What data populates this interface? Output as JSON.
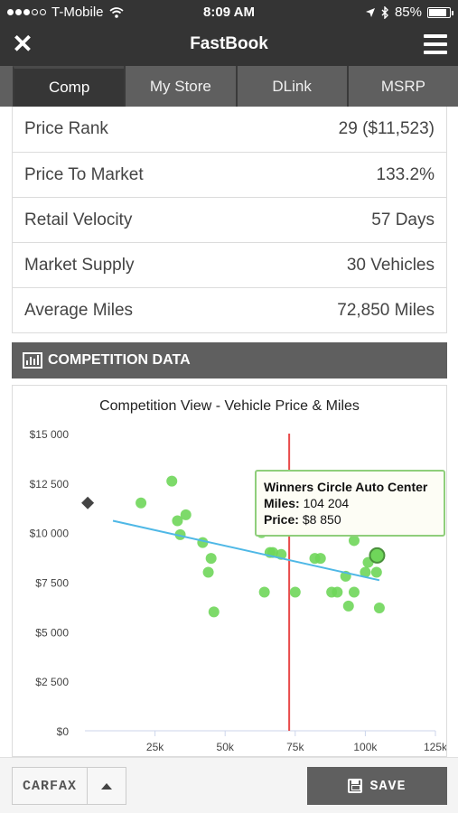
{
  "status_bar": {
    "carrier": "T-Mobile",
    "time": "8:09 AM",
    "battery": "85%",
    "battery_level": 0.85,
    "icons": [
      "signal-dots-icon",
      "wifi-icon",
      "location-arrow-icon",
      "bluetooth-icon",
      "battery-icon"
    ]
  },
  "header": {
    "title": "FastBook",
    "close_icon": "close-icon",
    "menu_icon": "hamburger-menu-icon"
  },
  "tabs": [
    {
      "label": "Comp",
      "active": true
    },
    {
      "label": "My Store",
      "active": false
    },
    {
      "label": "DLink",
      "active": false
    },
    {
      "label": "MSRP",
      "active": false
    }
  ],
  "metrics": [
    {
      "label": "Price Rank",
      "value": "29 ($11,523)"
    },
    {
      "label": "Price To Market",
      "value": "133.2%"
    },
    {
      "label": "Retail Velocity",
      "value": "57 Days"
    },
    {
      "label": "Market Supply",
      "value": "30 Vehicles"
    },
    {
      "label": "Average Miles",
      "value": "72,850 Miles"
    }
  ],
  "section": {
    "title": "COMPETITION DATA",
    "icon": "bar-chart-icon"
  },
  "tooltip": {
    "title": "Winners Circle Auto Center",
    "miles_label": "Miles:",
    "miles_value": "104 204",
    "price_label": "Price:",
    "price_value": "$8 850"
  },
  "footer": {
    "carfax_label": "CARFAX",
    "expand_icon": "caret-up-icon",
    "save_label": "SAVE",
    "save_icon": "floppy-disk-icon"
  },
  "colors": {
    "point": "#6fd65a",
    "trend": "#4fb8e6",
    "average_line": "#e84a4a",
    "my_vehicle": "#444444",
    "header_bg": "#343434",
    "tab_bg": "#5f5f5f"
  },
  "chart_data": {
    "type": "scatter",
    "title": "Competition View - Vehicle Price & Miles",
    "xlabel": "",
    "ylabel": "",
    "xlim": [
      0,
      125000
    ],
    "ylim": [
      0,
      15000
    ],
    "x_ticks": [
      25000,
      50000,
      75000,
      100000,
      125000
    ],
    "x_tick_labels": [
      "25k",
      "50k",
      "75k",
      "100k",
      "125k"
    ],
    "y_ticks": [
      0,
      2500,
      5000,
      7500,
      10000,
      12500,
      15000
    ],
    "y_tick_labels": [
      "$0",
      "$2 500",
      "$5 000",
      "$7 500",
      "$10 000",
      "$12 500",
      "$15 000"
    ],
    "grid": false,
    "average_miles_line": 72850,
    "my_vehicle": {
      "x": 1000,
      "y": 11500
    },
    "trendline": {
      "x": [
        10000,
        105000
      ],
      "y": [
        10600,
        7600
      ]
    },
    "selected_point": {
      "x": 104204,
      "y": 8850
    },
    "points": [
      {
        "x": 20000,
        "y": 11500
      },
      {
        "x": 31000,
        "y": 12600
      },
      {
        "x": 33000,
        "y": 10600
      },
      {
        "x": 34000,
        "y": 9900
      },
      {
        "x": 36000,
        "y": 10900
      },
      {
        "x": 42000,
        "y": 9500
      },
      {
        "x": 45000,
        "y": 8700
      },
      {
        "x": 44000,
        "y": 8000
      },
      {
        "x": 46000,
        "y": 6000
      },
      {
        "x": 63000,
        "y": 10000
      },
      {
        "x": 66000,
        "y": 9000
      },
      {
        "x": 67000,
        "y": 9000
      },
      {
        "x": 70000,
        "y": 8900
      },
      {
        "x": 64000,
        "y": 7000
      },
      {
        "x": 75000,
        "y": 7000
      },
      {
        "x": 82000,
        "y": 8700
      },
      {
        "x": 84000,
        "y": 8700
      },
      {
        "x": 86000,
        "y": 10800
      },
      {
        "x": 88000,
        "y": 7000
      },
      {
        "x": 90000,
        "y": 7000
      },
      {
        "x": 96000,
        "y": 9600
      },
      {
        "x": 93000,
        "y": 7800
      },
      {
        "x": 96000,
        "y": 7000
      },
      {
        "x": 94000,
        "y": 6300
      },
      {
        "x": 100000,
        "y": 8000
      },
      {
        "x": 101000,
        "y": 8500
      },
      {
        "x": 104000,
        "y": 8000
      },
      {
        "x": 105000,
        "y": 6200
      },
      {
        "x": 104204,
        "y": 8850
      }
    ]
  }
}
